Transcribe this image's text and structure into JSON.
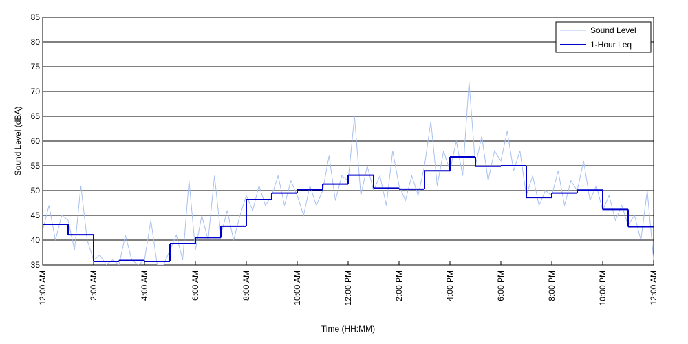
{
  "chart_data": {
    "type": "line",
    "xlabel": "Time (HH:MM)",
    "ylabel": "Sound Level (dBA)",
    "xlim": [
      0,
      24
    ],
    "ylim": [
      35,
      85
    ],
    "xticks": [
      {
        "value": 0,
        "label": "12:00 AM"
      },
      {
        "value": 2,
        "label": "2:00 AM"
      },
      {
        "value": 4,
        "label": "4:00 AM"
      },
      {
        "value": 6,
        "label": "6:00 AM"
      },
      {
        "value": 8,
        "label": "8:00 AM"
      },
      {
        "value": 10,
        "label": "10:00 AM"
      },
      {
        "value": 12,
        "label": "12:00 PM"
      },
      {
        "value": 14,
        "label": "2:00 PM"
      },
      {
        "value": 16,
        "label": "4:00 PM"
      },
      {
        "value": 18,
        "label": "6:00 PM"
      },
      {
        "value": 20,
        "label": "8:00 PM"
      },
      {
        "value": 22,
        "label": "10:00 PM"
      },
      {
        "value": 24,
        "label": "12:00 AM"
      }
    ],
    "yticks": [
      35,
      40,
      45,
      50,
      55,
      60,
      65,
      70,
      75,
      80,
      85
    ],
    "grid": true,
    "legend": "upper right",
    "series": [
      {
        "name": "Sound Level",
        "color": "#a8c0f0",
        "style": "line",
        "x": [
          0,
          0.25,
          0.5,
          0.75,
          1,
          1.25,
          1.5,
          1.75,
          2,
          2.25,
          2.5,
          2.75,
          3,
          3.25,
          3.5,
          3.75,
          4,
          4.25,
          4.5,
          4.75,
          5,
          5.25,
          5.5,
          5.75,
          6,
          6.25,
          6.5,
          6.75,
          7,
          7.25,
          7.5,
          7.75,
          8,
          8.25,
          8.5,
          8.75,
          9,
          9.25,
          9.5,
          9.75,
          10,
          10.25,
          10.5,
          10.75,
          11,
          11.25,
          11.5,
          11.75,
          12,
          12.25,
          12.5,
          12.75,
          13,
          13.25,
          13.5,
          13.75,
          14,
          14.25,
          14.5,
          14.75,
          15,
          15.25,
          15.5,
          15.75,
          16,
          16.25,
          16.5,
          16.75,
          17,
          17.25,
          17.5,
          17.75,
          18,
          18.25,
          18.5,
          18.75,
          19,
          19.25,
          19.5,
          19.75,
          20,
          20.25,
          20.5,
          20.75,
          21,
          21.25,
          21.5,
          21.75,
          22,
          22.25,
          22.5,
          22.75,
          23,
          23.25,
          23.5,
          23.75,
          24
        ],
        "values": [
          42,
          47,
          40,
          45,
          44,
          38,
          51,
          40,
          36,
          37,
          35,
          36,
          35,
          41,
          36,
          35,
          36,
          44,
          35,
          35,
          38,
          41,
          36,
          52,
          38,
          45,
          40,
          53,
          41,
          46,
          40,
          45,
          49,
          46,
          51,
          47,
          49,
          53,
          47,
          52,
          49,
          45,
          51,
          47,
          50,
          57,
          48,
          53,
          52,
          65,
          49,
          55,
          50,
          53,
          47,
          58,
          51,
          48,
          53,
          49,
          55,
          64,
          51,
          58,
          54,
          60,
          53,
          72,
          55,
          61,
          52,
          58,
          56,
          62,
          54,
          58,
          49,
          53,
          47,
          50,
          49,
          54,
          47,
          52,
          50,
          56,
          48,
          51,
          46,
          49,
          44,
          47,
          43,
          45,
          40,
          50,
          36
        ]
      },
      {
        "name": "1-Hour Leq",
        "color": "#0000cc",
        "style": "step-post",
        "x": [
          0,
          1,
          2,
          3,
          4,
          5,
          6,
          7,
          8,
          9,
          10,
          11,
          12,
          13,
          14,
          15,
          16,
          17,
          18,
          19,
          20,
          21,
          22,
          23
        ],
        "values": [
          43.2,
          41.1,
          35.7,
          35.9,
          35.7,
          39.3,
          40.5,
          42.8,
          48.2,
          49.5,
          50.2,
          51.3,
          53.1,
          50.5,
          50.3,
          54.0,
          56.8,
          54.9,
          55.0,
          48.6,
          49.5,
          50.1,
          46.2,
          42.7
        ]
      }
    ]
  }
}
